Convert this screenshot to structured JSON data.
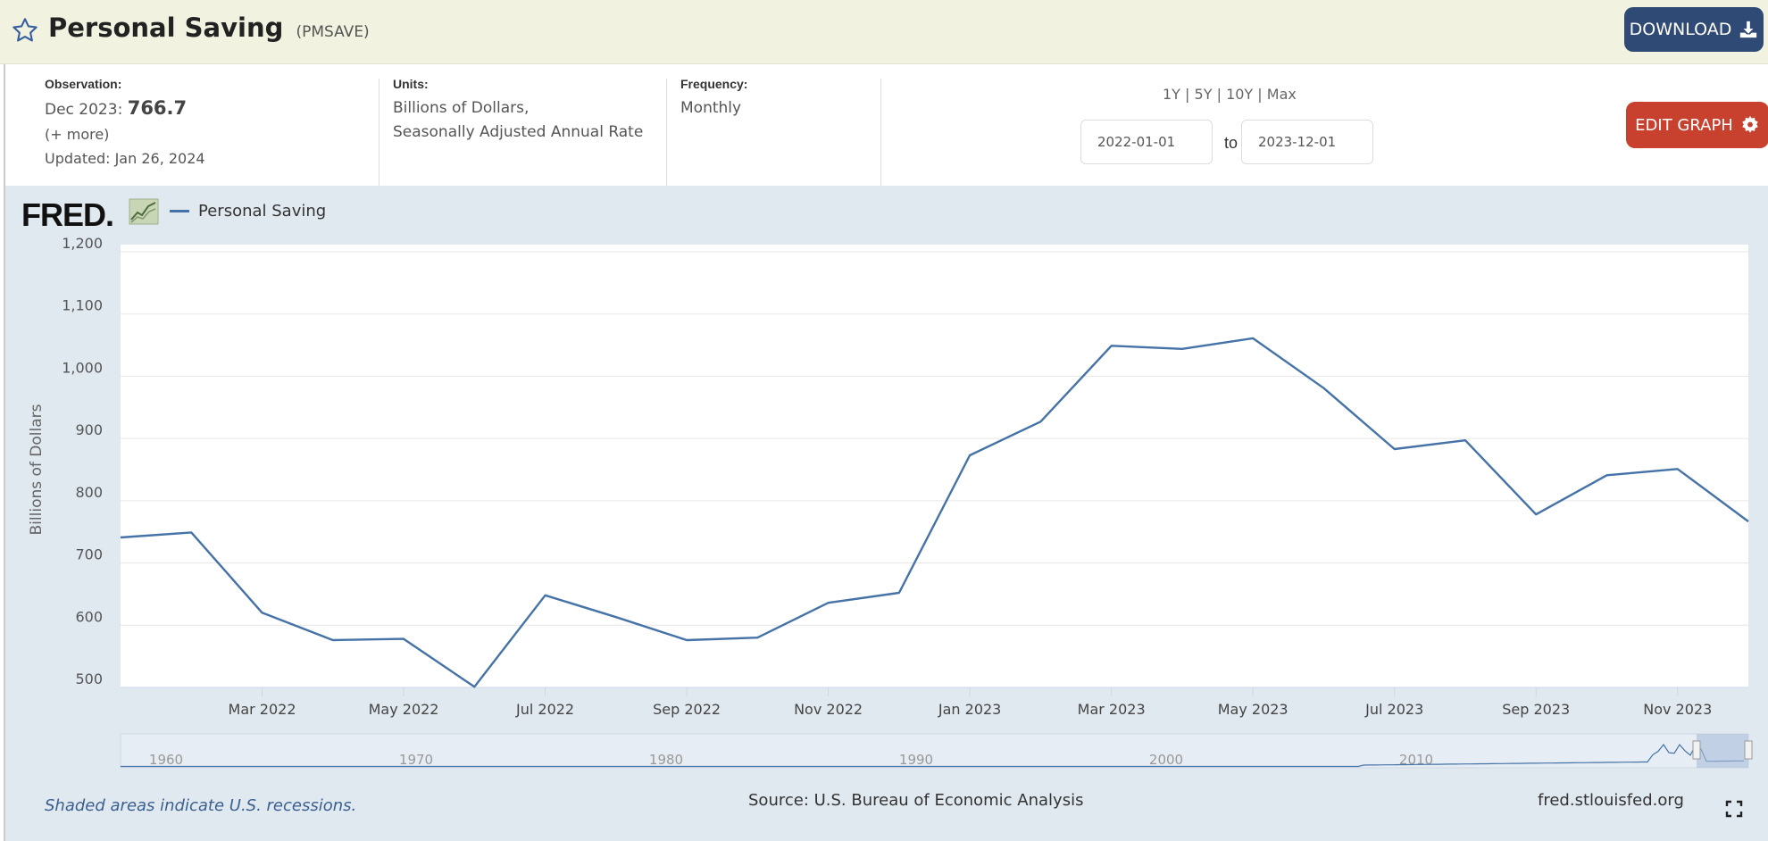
{
  "header": {
    "title": "Personal Saving",
    "series_id": "(PMSAVE)",
    "download_label": "DOWNLOAD"
  },
  "info": {
    "observation_label": "Observation:",
    "observation_date": "Dec 2023:",
    "observation_value": "766.7",
    "more_link": "(+ more)",
    "updated": "Updated: Jan 26, 2024",
    "units_label": "Units:",
    "units_line1": "Billions of Dollars,",
    "units_line2": "Seasonally Adjusted Annual Rate",
    "frequency_label": "Frequency:",
    "frequency_value": "Monthly",
    "range_1y": "1Y",
    "range_5y": "5Y",
    "range_10y": "10Y",
    "range_max": "Max",
    "range_sep": "|",
    "date_from": "2022-01-01",
    "to_label": "to",
    "date_to": "2023-12-01",
    "edit_label": "EDIT GRAPH"
  },
  "graph": {
    "logo_text": "FRED",
    "legend_label": "Personal Saving",
    "recession_note": "Shaded areas indicate U.S. recessions.",
    "source": "Source: U.S. Bureau of Economic Analysis",
    "site": "fred.stlouisfed.org"
  },
  "colors": {
    "series": "#4572a7",
    "plot_bg": "#ffffff",
    "panel_bg": "#e1e9f0",
    "header_bg": "#f1f3e0",
    "download_btn": "#2f4a75",
    "edit_btn": "#c8412f"
  },
  "chart_data": {
    "type": "line",
    "ylabel": "Billions of Dollars",
    "ylim": [
      500,
      1200
    ],
    "yticks": [
      500,
      600,
      700,
      800,
      900,
      1000,
      1100,
      1200
    ],
    "ytick_labels": [
      "500",
      "600",
      "700",
      "800",
      "900",
      "1,000",
      "1,100",
      "1,200"
    ],
    "grid": true,
    "legend_position": "top-left",
    "x": [
      "2022-01",
      "2022-02",
      "2022-03",
      "2022-04",
      "2022-05",
      "2022-06",
      "2022-07",
      "2022-08",
      "2022-09",
      "2022-10",
      "2022-11",
      "2022-12",
      "2023-01",
      "2023-02",
      "2023-03",
      "2023-04",
      "2023-05",
      "2023-06",
      "2023-07",
      "2023-08",
      "2023-09",
      "2023-10",
      "2023-11",
      "2023-12"
    ],
    "series": [
      {
        "name": "Personal Saving",
        "values": [
          741,
          749,
          620,
          576,
          578,
          501,
          648,
          613,
          576,
          580,
          636,
          652,
          873,
          927,
          1049,
          1044,
          1061,
          981,
          883,
          897,
          778,
          841,
          851,
          766.7
        ]
      }
    ],
    "xtick_labels": [
      "Mar 2022",
      "May 2022",
      "Jul 2022",
      "Sep 2022",
      "Nov 2022",
      "Jan 2023",
      "Mar 2023",
      "May 2023",
      "Jul 2023",
      "Sep 2023",
      "Nov 2023"
    ],
    "xtick_months": [
      "2022-03",
      "2022-05",
      "2022-07",
      "2022-09",
      "2022-11",
      "2023-01",
      "2023-03",
      "2023-05",
      "2023-07",
      "2023-09",
      "2023-11"
    ],
    "navigator_labels": [
      "1960",
      "1970",
      "1980",
      "1990",
      "2000",
      "2010"
    ]
  }
}
